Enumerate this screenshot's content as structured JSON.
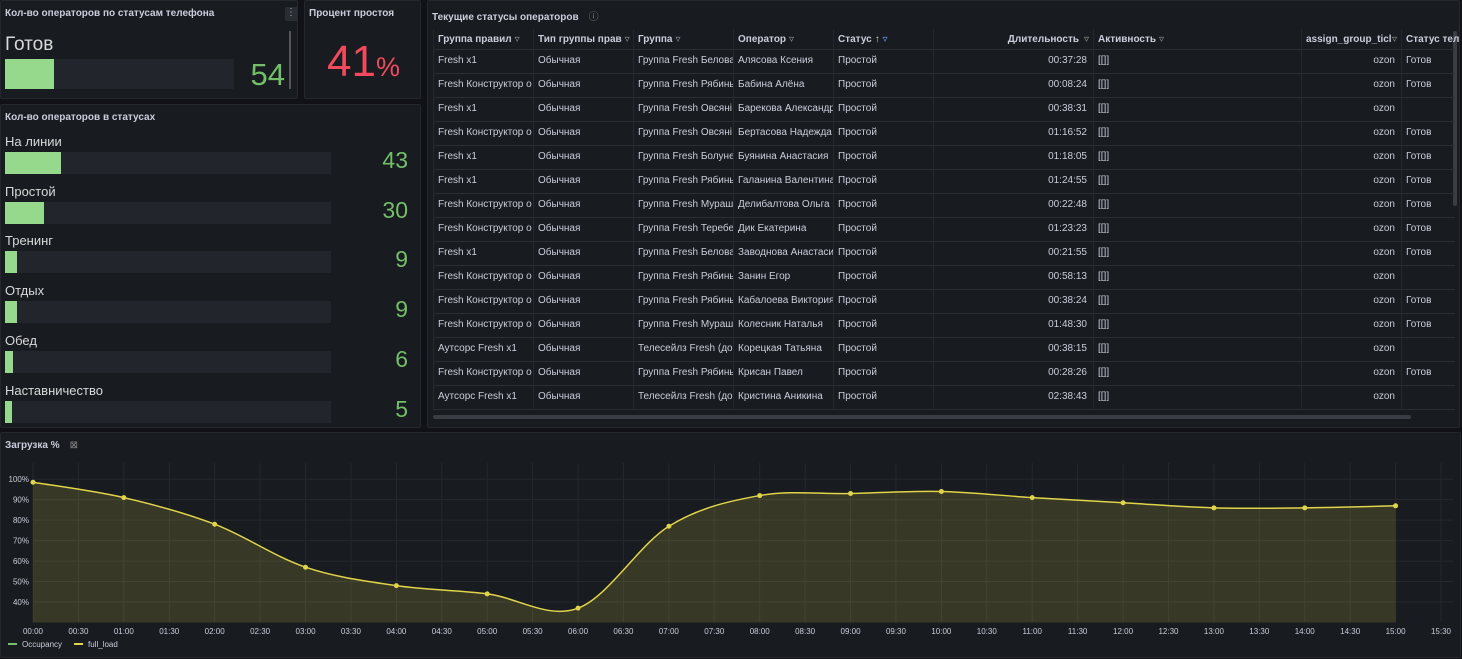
{
  "phone_status_panel": {
    "title": "Кол-во операторов по статусам телефона",
    "label": "Готов",
    "value": 54,
    "xlim": [
      0,
      250
    ]
  },
  "idle_panel": {
    "title": "Процент простоя",
    "value": 41,
    "unit": "%"
  },
  "status_panel": {
    "title": "Кол-во операторов в статусах",
    "xlim": [
      0,
      250
    ],
    "categories": [
      "На линии",
      "Простой",
      "Тренинг",
      "Отдых",
      "Обед",
      "Наставничество"
    ],
    "values": [
      43,
      30,
      9,
      9,
      6,
      5
    ]
  },
  "table": {
    "title": "Текущие статусы операторов",
    "columns": [
      "Группа правил",
      "Тип группы прав",
      "Группа",
      "Оператор",
      "Статус",
      "Длительность",
      "Активность",
      "assign_group_ticl",
      "Статус теле"
    ],
    "rows": [
      [
        "Fresh x1",
        "Обычная",
        "Группа Fresh Белова",
        "Алясова Ксения",
        "Простой",
        "00:37:28",
        "[[]]",
        "ozon",
        "Готов"
      ],
      [
        "Fresh Конструктор о",
        "Обычная",
        "Группа Fresh Рябинь",
        "Бабина Алёна",
        "Простой",
        "00:08:24",
        "[[]]",
        "ozon",
        "Готов"
      ],
      [
        "Fresh x1",
        "Обычная",
        "Группа Fresh Овсяні",
        "Барекова Александр",
        "Простой",
        "00:38:31",
        "[[]]",
        "ozon",
        null
      ],
      [
        "Fresh Конструктор о",
        "Обычная",
        "Группа Fresh Овсяні",
        "Бертасова Надежда",
        "Простой",
        "01:16:52",
        "[[]]",
        "ozon",
        "Готов"
      ],
      [
        "Fresh x1",
        "Обычная",
        "Группа Fresh Болуне",
        "Буянина Анастасия",
        "Простой",
        "01:18:05",
        "[[]]",
        "ozon",
        "Готов"
      ],
      [
        "Fresh x1",
        "Обычная",
        "Группа Fresh Рябинь",
        "Галанина Валентина",
        "Простой",
        "01:24:55",
        "[[]]",
        "ozon",
        "Готов"
      ],
      [
        "Fresh Конструктор о",
        "Обычная",
        "Группа Fresh Мураш",
        "Делибалтова Ольга",
        "Простой",
        "00:22:48",
        "[[]]",
        "ozon",
        "Готов"
      ],
      [
        "Fresh Конструктор о",
        "Обычная",
        "Группа Fresh Теребе",
        "Дик Екатерина",
        "Простой",
        "01:23:23",
        "[[]]",
        "ozon",
        "Готов"
      ],
      [
        "Fresh x1",
        "Обычная",
        "Группа Fresh Белова",
        "Заводнова Анастаси",
        "Простой",
        "00:21:55",
        "[[]]",
        "ozon",
        "Готов"
      ],
      [
        "Fresh Конструктор о",
        "Обычная",
        "Группа Fresh Рябинь",
        "Занин Егор",
        "Простой",
        "00:58:13",
        "[[]]",
        "ozon",
        null
      ],
      [
        "Fresh Конструктор о",
        "Обычная",
        "Группа Fresh Рябинь",
        "Кабалоева Виктория",
        "Простой",
        "00:38:24",
        "[[]]",
        "ozon",
        "Готов"
      ],
      [
        "Fresh Конструктор о",
        "Обычная",
        "Группа Fresh Мураш",
        "Колесник Наталья",
        "Простой",
        "01:48:30",
        "[[]]",
        "ozon",
        "Готов"
      ],
      [
        "Аутсорс Fresh x1",
        "Обычная",
        "Телесейлз Fresh (до",
        "Корецкая Татьяна",
        "Простой",
        "00:38:15",
        "[[]]",
        "ozon",
        null
      ],
      [
        "Fresh Конструктор о",
        "Обычная",
        "Группа Fresh Рябинь",
        "Крисан Павел",
        "Простой",
        "00:28:26",
        "[[]]",
        "ozon",
        "Готов"
      ],
      [
        "Аутсорс Fresh x1",
        "Обычная",
        "Телесейлз Fresh (до",
        "Кристина Аникина",
        "Простой",
        "02:38:43",
        "[[]]",
        "ozon",
        null
      ]
    ]
  },
  "chart_data": {
    "type": "line",
    "title": "Загрузка %",
    "x": [
      "00:00",
      "01:00",
      "02:00",
      "03:00",
      "04:00",
      "05:00",
      "06:00",
      "07:00",
      "08:00",
      "09:00",
      "10:00",
      "11:00",
      "12:00",
      "13:00",
      "14:00",
      "15:00"
    ],
    "xlim": [
      "00:00",
      "15:30"
    ],
    "xticks": [
      "00:00",
      "00:30",
      "01:00",
      "01:30",
      "02:00",
      "02:30",
      "03:00",
      "03:30",
      "04:00",
      "04:30",
      "05:00",
      "05:30",
      "06:00",
      "06:30",
      "07:00",
      "07:30",
      "08:00",
      "08:30",
      "09:00",
      "09:30",
      "10:00",
      "10:30",
      "11:00",
      "11:30",
      "12:00",
      "12:30",
      "13:00",
      "13:30",
      "14:00",
      "14:30",
      "15:00",
      "15:30"
    ],
    "ylim": [
      30,
      104
    ],
    "yticks": [
      {
        "value": 40,
        "label": "40%"
      },
      {
        "value": 50,
        "label": "50%"
      },
      {
        "value": 60,
        "label": "60%"
      },
      {
        "value": 70,
        "label": "70%"
      },
      {
        "value": 80,
        "label": "80%"
      },
      {
        "value": 90,
        "label": "90%"
      },
      {
        "value": 100,
        "label": "100%"
      }
    ],
    "grid": true,
    "series": [
      {
        "name": "Occupancy",
        "color": "#73bf69"
      },
      {
        "name": "full_load",
        "color": "#e0d44a",
        "values": [
          98.5,
          91,
          78,
          57,
          48,
          44,
          37,
          77,
          92,
          93,
          94,
          91,
          88.5,
          86,
          86,
          87
        ]
      }
    ]
  }
}
